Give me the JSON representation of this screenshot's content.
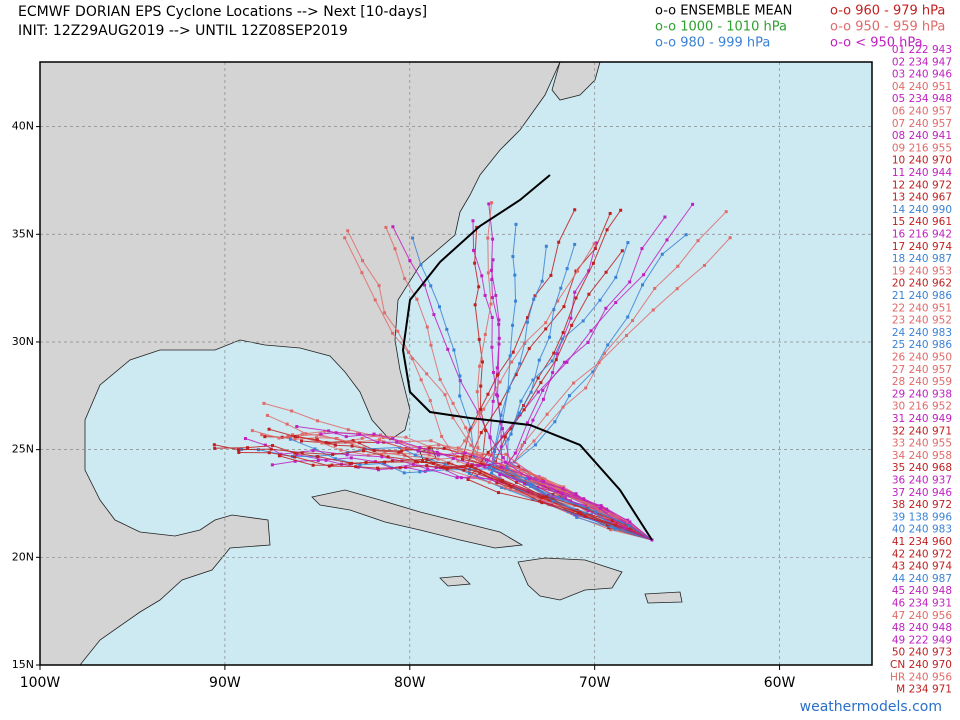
{
  "title": "ECMWF DORIAN EPS Cyclone Locations --> Next [10-days]",
  "subtitle": "INIT: 12Z29AUG2019 --> UNTIL 12Z08SEP2019",
  "legend": [
    {
      "label": "o-o ENSEMBLE MEAN",
      "color": "#000000"
    },
    {
      "label": "o-o 960 - 979 hPa",
      "color": "#c02020"
    },
    {
      "label": "o-o 1000 - 1010 hPa",
      "color": "#2ea02e"
    },
    {
      "label": "o-o 950 - 959 hPa",
      "color": "#e06a6a"
    },
    {
      "label": "o-o 980 - 999 hPa",
      "color": "#3b82d6"
    },
    {
      "label": "o-o < 950 hPa",
      "color": "#c020c0"
    }
  ],
  "map": {
    "lon_range": [
      -100,
      -55
    ],
    "lat_range": [
      15,
      43
    ],
    "lon_ticks": [
      {
        "value": -100,
        "label": "100W"
      },
      {
        "value": -90,
        "label": "90W"
      },
      {
        "value": -80,
        "label": "80W"
      },
      {
        "value": -70,
        "label": "70W"
      },
      {
        "value": -60,
        "label": "60W"
      }
    ],
    "lat_ticks": [
      {
        "value": 15,
        "label": "15N"
      },
      {
        "value": 20,
        "label": "20N"
      },
      {
        "value": 25,
        "label": "25N"
      },
      {
        "value": 30,
        "label": "30N"
      },
      {
        "value": 35,
        "label": "35N"
      },
      {
        "value": 40,
        "label": "40N"
      }
    ]
  },
  "members": [
    {
      "label": "01 222 943",
      "color": "#c020c0"
    },
    {
      "label": "02 234 947",
      "color": "#c020c0"
    },
    {
      "label": "03 240 946",
      "color": "#c020c0"
    },
    {
      "label": "04 240 951",
      "color": "#e06a6a"
    },
    {
      "label": "05 234 948",
      "color": "#c020c0"
    },
    {
      "label": "06 240 957",
      "color": "#e06a6a"
    },
    {
      "label": "07 240 957",
      "color": "#e06a6a"
    },
    {
      "label": "08 240 941",
      "color": "#c020c0"
    },
    {
      "label": "09 216 955",
      "color": "#e06a6a"
    },
    {
      "label": "10 240 970",
      "color": "#c02020"
    },
    {
      "label": "11 240 944",
      "color": "#c020c0"
    },
    {
      "label": "12 240 972",
      "color": "#c02020"
    },
    {
      "label": "13 240 967",
      "color": "#c02020"
    },
    {
      "label": "14 240 990",
      "color": "#3b82d6"
    },
    {
      "label": "15 240 961",
      "color": "#c02020"
    },
    {
      "label": "16 216 942",
      "color": "#c020c0"
    },
    {
      "label": "17 240 974",
      "color": "#c02020"
    },
    {
      "label": "18 240 987",
      "color": "#3b82d6"
    },
    {
      "label": "19 240 953",
      "color": "#e06a6a"
    },
    {
      "label": "20 240 962",
      "color": "#c02020"
    },
    {
      "label": "21 240 986",
      "color": "#3b82d6"
    },
    {
      "label": "22 240 951",
      "color": "#e06a6a"
    },
    {
      "label": "23 240 952",
      "color": "#e06a6a"
    },
    {
      "label": "24 240 983",
      "color": "#3b82d6"
    },
    {
      "label": "25 240 986",
      "color": "#3b82d6"
    },
    {
      "label": "26 240 950",
      "color": "#e06a6a"
    },
    {
      "label": "27 240 957",
      "color": "#e06a6a"
    },
    {
      "label": "28 240 959",
      "color": "#e06a6a"
    },
    {
      "label": "29 240 938",
      "color": "#c020c0"
    },
    {
      "label": "30 216 952",
      "color": "#e06a6a"
    },
    {
      "label": "31 240 949",
      "color": "#c020c0"
    },
    {
      "label": "32 240 971",
      "color": "#c02020"
    },
    {
      "label": "33 240 955",
      "color": "#e06a6a"
    },
    {
      "label": "34 240 958",
      "color": "#e06a6a"
    },
    {
      "label": "35 240 968",
      "color": "#c02020"
    },
    {
      "label": "36 240 937",
      "color": "#c020c0"
    },
    {
      "label": "37 240 946",
      "color": "#c020c0"
    },
    {
      "label": "38 240 972",
      "color": "#c02020"
    },
    {
      "label": "39 138 996",
      "color": "#3b82d6"
    },
    {
      "label": "40 240 983",
      "color": "#3b82d6"
    },
    {
      "label": "41 234 960",
      "color": "#c02020"
    },
    {
      "label": "42 240 972",
      "color": "#c02020"
    },
    {
      "label": "43 240 974",
      "color": "#c02020"
    },
    {
      "label": "44 240 987",
      "color": "#3b82d6"
    },
    {
      "label": "45 240 948",
      "color": "#c020c0"
    },
    {
      "label": "46 234 931",
      "color": "#c020c0"
    },
    {
      "label": "47 240 956",
      "color": "#e06a6a"
    },
    {
      "label": "48 240 948",
      "color": "#c020c0"
    },
    {
      "label": "49 222 949",
      "color": "#c020c0"
    },
    {
      "label": "50 240 973",
      "color": "#c02020"
    },
    {
      "label": "CN 240 970",
      "color": "#c02020"
    },
    {
      "label": "HR 240 956",
      "color": "#e06a6a"
    },
    {
      "label": "M 234 971",
      "color": "#c02020"
    }
  ],
  "credit": "weathermodels.com"
}
